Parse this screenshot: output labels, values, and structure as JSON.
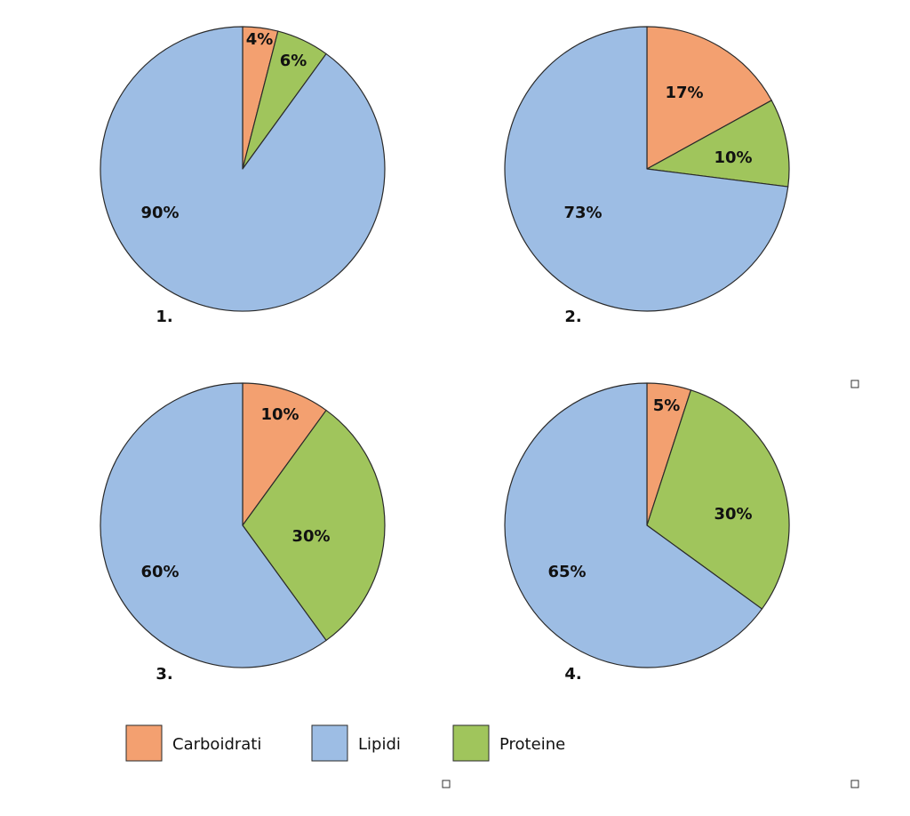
{
  "colors": {
    "Carboidrati": "#f3a070",
    "Lipidi": "#9dbde4",
    "Proteine": "#a0c55c"
  },
  "legend": [
    {
      "label": "Carboidrati",
      "color": "#f3a070"
    },
    {
      "label": "Lipidi",
      "color": "#9dbde4"
    },
    {
      "label": "Proteine",
      "color": "#a0c55c"
    }
  ],
  "chart_data": [
    {
      "type": "pie",
      "number_label": "1.",
      "slices": [
        {
          "category": "Carboidrati",
          "value": 4,
          "label": "4%"
        },
        {
          "category": "Proteine",
          "value": 6,
          "label": "6%"
        },
        {
          "category": "Lipidi",
          "value": 90,
          "label": "90%"
        }
      ]
    },
    {
      "type": "pie",
      "number_label": "2.",
      "slices": [
        {
          "category": "Carboidrati",
          "value": 17,
          "label": "17%"
        },
        {
          "category": "Proteine",
          "value": 10,
          "label": "10%"
        },
        {
          "category": "Lipidi",
          "value": 73,
          "label": "73%"
        }
      ]
    },
    {
      "type": "pie",
      "number_label": "3.",
      "slices": [
        {
          "category": "Carboidrati",
          "value": 10,
          "label": "10%"
        },
        {
          "category": "Proteine",
          "value": 30,
          "label": "30%"
        },
        {
          "category": "Lipidi",
          "value": 60,
          "label": "60%"
        }
      ]
    },
    {
      "type": "pie",
      "number_label": "4.",
      "slices": [
        {
          "category": "Carboidrati",
          "value": 5,
          "label": "5%"
        },
        {
          "category": "Proteine",
          "value": 30,
          "label": "30%"
        },
        {
          "category": "Lipidi",
          "value": 65,
          "label": "65%"
        }
      ]
    }
  ]
}
